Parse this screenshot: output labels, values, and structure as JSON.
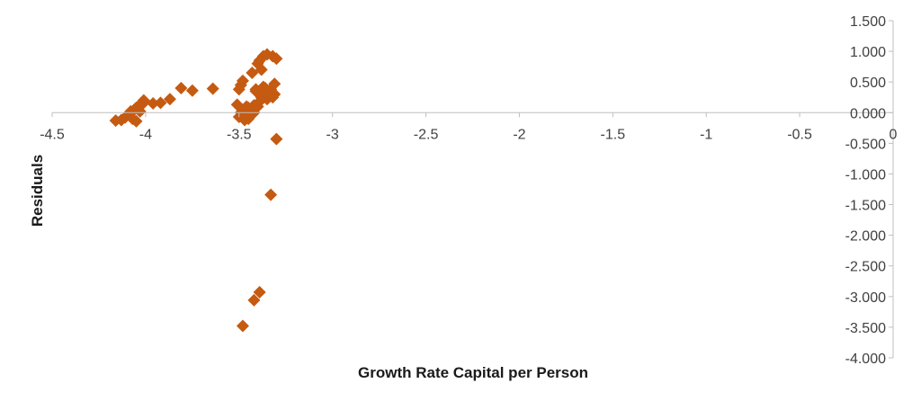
{
  "chart_data": {
    "type": "scatter",
    "title": "",
    "xlabel": "Growth Rate Capital per Person",
    "ylabel": "Residuals",
    "xlim": [
      -4.5,
      0
    ],
    "ylim": [
      -4.0,
      1.5
    ],
    "x_ticks": [
      "-4.5",
      "-4",
      "-3.5",
      "-3",
      "-2.5",
      "-2",
      "-1.5",
      "-1",
      "-0.5",
      "0"
    ],
    "y_ticks": [
      "1.500",
      "1.000",
      "0.500",
      "0.000",
      "-0.500",
      "-1.000",
      "-1.500",
      "-2.000",
      "-2.500",
      "-3.000",
      "-3.500",
      "-4.000"
    ],
    "grid": false,
    "legend": "none",
    "marker_color": "#C55A11",
    "marker": "diamond",
    "series": [
      {
        "x": [
          -4.16,
          -4.13,
          -4.11,
          -4.09,
          -4.08,
          -4.07,
          -4.06,
          -4.05,
          -4.05,
          -4.04,
          -4.03,
          -4.02,
          -4.01,
          -3.96,
          -3.92,
          -3.87,
          -3.81,
          -3.75,
          -3.64,
          -3.51,
          -3.5,
          -3.49,
          -3.48,
          -3.47,
          -3.46,
          -3.45,
          -3.44,
          -3.43,
          -3.42,
          -3.41,
          -3.4,
          -3.39,
          -3.38,
          -3.37,
          -3.36,
          -3.35,
          -3.34,
          -3.33,
          -3.32,
          -3.31,
          -3.3,
          -3.5,
          -3.48,
          -3.46,
          -3.44,
          -3.42,
          -3.41,
          -3.39,
          -3.37,
          -3.35,
          -3.33,
          -3.31,
          -3.49,
          -3.47,
          -3.45,
          -3.43,
          -3.4,
          -3.38,
          -3.36,
          -3.34,
          -3.32,
          -3.3,
          -3.33,
          -3.39,
          -3.42,
          -3.48
        ],
        "y": [
          -0.13,
          -0.12,
          -0.08,
          -0.02,
          0.02,
          -0.1,
          0.05,
          0.08,
          -0.14,
          0.1,
          0.02,
          0.13,
          0.2,
          0.15,
          0.16,
          0.22,
          0.4,
          0.36,
          0.39,
          0.13,
          0.38,
          0.45,
          0.52,
          -0.05,
          0.1,
          -0.1,
          0.05,
          0.65,
          0.0,
          0.38,
          0.8,
          0.85,
          0.7,
          0.92,
          0.28,
          0.95,
          0.3,
          0.35,
          0.92,
          0.3,
          0.88,
          -0.07,
          0.03,
          0.06,
          -0.03,
          0.12,
          0.35,
          0.18,
          0.42,
          0.22,
          0.38,
          0.47,
          0.0,
          -0.12,
          0.08,
          0.02,
          0.1,
          0.25,
          0.4,
          0.28,
          0.25,
          -0.43,
          -1.34,
          -2.93,
          -3.06,
          -3.48
        ]
      }
    ]
  }
}
